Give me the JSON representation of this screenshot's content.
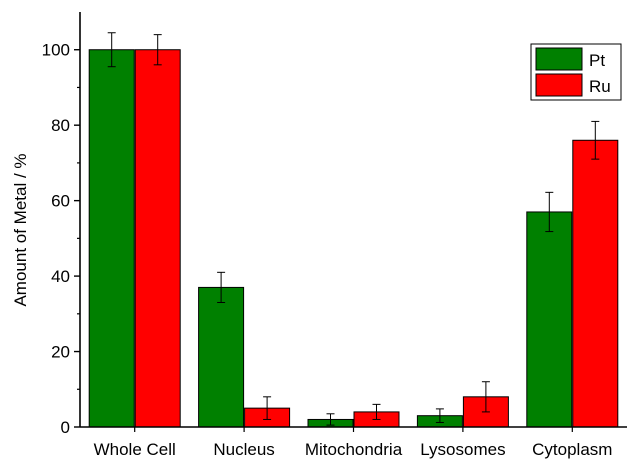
{
  "chart_data": {
    "type": "bar",
    "categories": [
      "Whole Cell",
      "Nucleus",
      "Mitochondria",
      "Lysosomes",
      "Cytoplasm"
    ],
    "series": [
      {
        "name": "Pt",
        "color": "#008000",
        "values": [
          100,
          37,
          2,
          3,
          57
        ],
        "errors": [
          4.5,
          4,
          1.5,
          1.8,
          5.2
        ]
      },
      {
        "name": "Ru",
        "color": "#ff0000",
        "values": [
          100,
          5,
          4,
          8,
          76
        ],
        "errors": [
          4,
          3,
          2,
          4,
          5
        ]
      }
    ],
    "title": "",
    "xlabel": "",
    "ylabel": "Amount of Metal / %",
    "ylim": [
      0,
      110
    ],
    "yticks": [
      0,
      20,
      40,
      60,
      80,
      100
    ],
    "grid": false,
    "legend_position": "top-right"
  }
}
